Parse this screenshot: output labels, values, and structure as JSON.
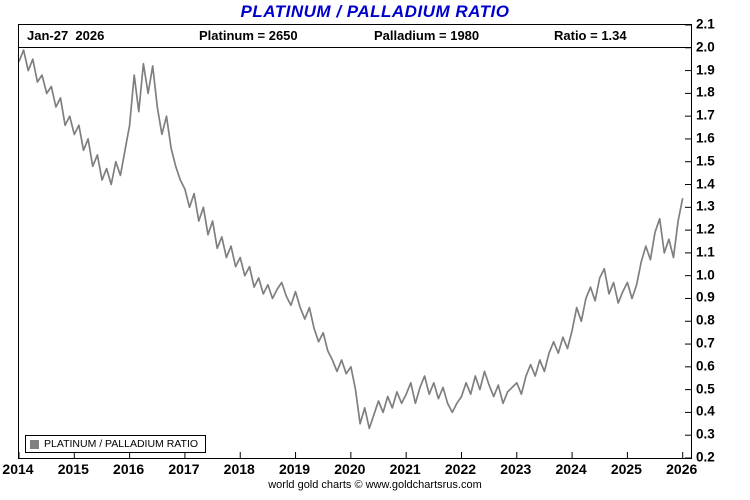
{
  "title": "PLATINUM / PALLADIUM RATIO",
  "header": {
    "date": "Jan-27  2026",
    "platinum": "Platinum = 2650",
    "palladium": "Palladium = 1980",
    "ratio": "Ratio = 1.34"
  },
  "legend": {
    "label": "PLATINUM / PALLADIUM RATIO",
    "swatch_color": "#808080"
  },
  "footer": "world gold charts © www.goldchartsrus.com",
  "colors": {
    "title": "#0000CC",
    "line": "#7f7f7f",
    "frame": "#000000"
  },
  "chart_data": {
    "type": "line",
    "title": "PLATINUM / PALLADIUM RATIO",
    "xlabel": "",
    "ylabel": "",
    "legend_position": "bottom-left-inside",
    "grid": false,
    "xlim": [
      2014.0,
      2026.15
    ],
    "ylim": [
      0.2,
      2.1
    ],
    "x_tick_labels": [
      "2014",
      "2015",
      "2016",
      "2017",
      "2018",
      "2019",
      "2020",
      "2021",
      "2022",
      "2023",
      "2024",
      "2025",
      "2026"
    ],
    "y_tick_labels": [
      "2.1",
      "2.0",
      "1.9",
      "1.8",
      "1.7",
      "1.6",
      "1.5",
      "1.4",
      "1.3",
      "1.2",
      "1.1",
      "1.0",
      "0.9",
      "0.8",
      "0.7",
      "0.6",
      "0.5",
      "0.4",
      "0.3",
      "0.2"
    ],
    "x_start": 2014.0,
    "x_step_years": 0.0833333,
    "cadence": "monthly, Jan-2014 through Jan-2026",
    "last_point": {
      "date": "Jan-27 2026",
      "ratio": 1.34,
      "platinum": 2650,
      "palladium": 1980
    },
    "series": [
      {
        "name": "PLATINUM / PALLADIUM RATIO",
        "color": "#7f7f7f",
        "values": [
          1.94,
          1.99,
          1.9,
          1.95,
          1.85,
          1.88,
          1.8,
          1.83,
          1.74,
          1.78,
          1.66,
          1.7,
          1.62,
          1.66,
          1.55,
          1.6,
          1.48,
          1.53,
          1.42,
          1.47,
          1.4,
          1.5,
          1.44,
          1.55,
          1.66,
          1.88,
          1.72,
          1.93,
          1.8,
          1.92,
          1.74,
          1.62,
          1.7,
          1.56,
          1.48,
          1.42,
          1.38,
          1.3,
          1.36,
          1.24,
          1.3,
          1.18,
          1.24,
          1.12,
          1.17,
          1.08,
          1.13,
          1.04,
          1.08,
          1.0,
          1.04,
          0.95,
          0.99,
          0.92,
          0.96,
          0.9,
          0.94,
          0.97,
          0.91,
          0.87,
          0.93,
          0.86,
          0.81,
          0.86,
          0.77,
          0.71,
          0.75,
          0.67,
          0.63,
          0.58,
          0.63,
          0.57,
          0.6,
          0.5,
          0.35,
          0.42,
          0.33,
          0.39,
          0.45,
          0.4,
          0.47,
          0.42,
          0.49,
          0.44,
          0.48,
          0.53,
          0.44,
          0.51,
          0.56,
          0.48,
          0.53,
          0.46,
          0.51,
          0.44,
          0.4,
          0.44,
          0.47,
          0.53,
          0.48,
          0.56,
          0.5,
          0.58,
          0.52,
          0.47,
          0.52,
          0.44,
          0.49,
          0.51,
          0.53,
          0.48,
          0.56,
          0.61,
          0.56,
          0.63,
          0.58,
          0.66,
          0.71,
          0.66,
          0.73,
          0.68,
          0.76,
          0.86,
          0.8,
          0.9,
          0.95,
          0.89,
          0.99,
          1.03,
          0.92,
          0.97,
          0.88,
          0.93,
          0.97,
          0.9,
          0.96,
          1.06,
          1.13,
          1.07,
          1.19,
          1.25,
          1.1,
          1.16,
          1.08,
          1.24,
          1.34
        ]
      }
    ]
  }
}
